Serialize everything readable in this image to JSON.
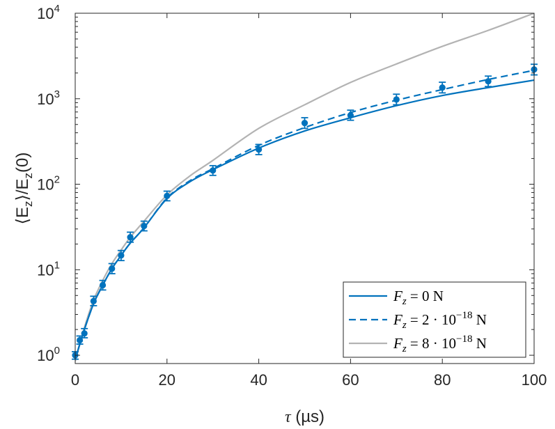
{
  "chart_data": {
    "type": "line",
    "xlabel": "τ (µs)",
    "ylabel": "⟨E_z⟩/E_z(0)",
    "xlim": [
      0,
      100
    ],
    "ylim": [
      0.8,
      10000
    ],
    "yscale": "log",
    "grid": false,
    "legend_position": "bottom-right",
    "x_ticks": [
      "0",
      "20",
      "40",
      "60",
      "80",
      "100"
    ],
    "y_ticks": [
      {
        "base": "10",
        "exp": "0",
        "value": 1
      },
      {
        "base": "10",
        "exp": "1",
        "value": 10
      },
      {
        "base": "10",
        "exp": "2",
        "value": 100
      },
      {
        "base": "10",
        "exp": "3",
        "value": 1000
      },
      {
        "base": "10",
        "exp": "4",
        "value": 10000
      }
    ],
    "measurements": {
      "color": "#0072BD",
      "points": [
        {
          "x": 0,
          "y": 1.0,
          "low": 0.9,
          "high": 1.1
        },
        {
          "x": 1,
          "y": 1.5,
          "low": 1.35,
          "high": 1.68
        },
        {
          "x": 2,
          "y": 1.8,
          "low": 1.6,
          "high": 2.05
        },
        {
          "x": 4,
          "y": 4.3,
          "low": 3.8,
          "high": 4.9
        },
        {
          "x": 6,
          "y": 6.6,
          "low": 5.8,
          "high": 7.5
        },
        {
          "x": 8,
          "y": 10.3,
          "low": 9.0,
          "high": 11.8
        },
        {
          "x": 10,
          "y": 14.7,
          "low": 12.8,
          "high": 16.8
        },
        {
          "x": 12,
          "y": 24,
          "low": 21,
          "high": 27.5
        },
        {
          "x": 15,
          "y": 32.5,
          "low": 28.5,
          "high": 37
        },
        {
          "x": 20,
          "y": 73,
          "low": 64,
          "high": 83
        },
        {
          "x": 30,
          "y": 145,
          "low": 127,
          "high": 165
        },
        {
          "x": 40,
          "y": 255,
          "low": 222,
          "high": 292
        },
        {
          "x": 50,
          "y": 520,
          "low": 450,
          "high": 600
        },
        {
          "x": 60,
          "y": 640,
          "low": 560,
          "high": 735
        },
        {
          "x": 70,
          "y": 980,
          "low": 850,
          "high": 1130
        },
        {
          "x": 80,
          "y": 1350,
          "low": 1170,
          "high": 1560
        },
        {
          "x": 90,
          "y": 1600,
          "low": 1390,
          "high": 1840
        },
        {
          "x": 100,
          "y": 2200,
          "low": 1900,
          "high": 2530
        }
      ]
    },
    "series": [
      {
        "name": "F_z = 0 N",
        "color": "#0072BD",
        "dash": "solid",
        "x": [
          0,
          2,
          4,
          6,
          8,
          10,
          12,
          15,
          20,
          25,
          30,
          40,
          50,
          60,
          70,
          80,
          90,
          100
        ],
        "y": [
          0.9,
          2.0,
          4.0,
          6.6,
          10.3,
          14.7,
          20.5,
          31,
          68,
          107,
          148,
          265,
          420,
          600,
          830,
          1090,
          1350,
          1650
        ]
      },
      {
        "name": "F_z = 2·10⁻¹⁸ N",
        "color": "#0072BD",
        "dash": "dashed",
        "x": [
          0,
          2,
          4,
          6,
          8,
          10,
          12,
          15,
          20,
          25,
          30,
          40,
          50,
          60,
          70,
          80,
          90,
          100
        ],
        "y": [
          0.9,
          2.0,
          4.0,
          6.6,
          10.3,
          14.7,
          20.5,
          31,
          69,
          110,
          152,
          285,
          460,
          690,
          960,
          1280,
          1680,
          2150
        ]
      },
      {
        "name": "F_z = 8·10⁻¹⁸ N",
        "color": "#B3B3B3",
        "dash": "solid",
        "x": [
          0,
          2,
          4,
          6,
          8,
          10,
          12,
          15,
          20,
          25,
          30,
          40,
          50,
          60,
          70,
          80,
          90,
          100
        ],
        "y": [
          0.85,
          2.1,
          4.4,
          7.5,
          11.8,
          17.0,
          24,
          37,
          75,
          125,
          190,
          450,
          850,
          1550,
          2550,
          4100,
          6300,
          10000
        ]
      }
    ],
    "legend": [
      {
        "prefix": "F",
        "sub": "z",
        "rest": " = 0 N",
        "sup": ""
      },
      {
        "prefix": "F",
        "sub": "z",
        "rest": " = 2 · 10",
        "sup": "−18",
        "tail": " N"
      },
      {
        "prefix": "F",
        "sub": "z",
        "rest": " = 8 · 10",
        "sup": "−18",
        "tail": " N"
      }
    ]
  }
}
